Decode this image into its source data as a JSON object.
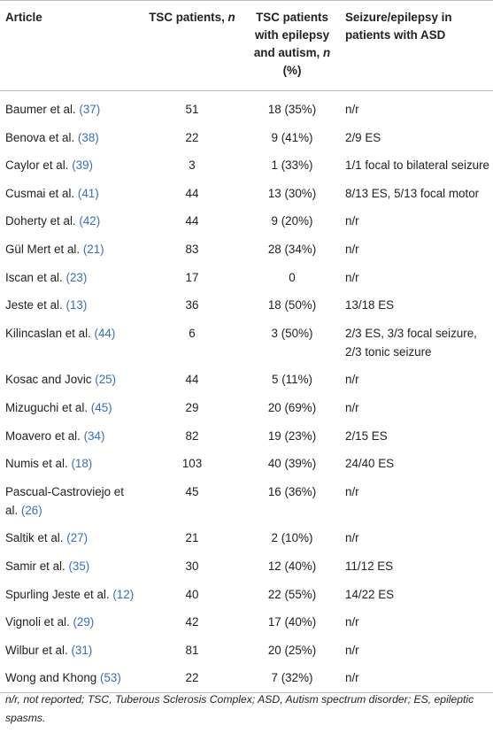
{
  "table": {
    "headers": {
      "article": "Article",
      "tsc_patients_label": "TSC patients,",
      "tsc_patients_n": "n",
      "epilepsy_autism_label": "TSC patients with epilepsy and autism,",
      "epilepsy_autism_n": "n",
      "epilepsy_autism_pct": "(%)",
      "seizure_asd": "Seizure/epilepsy in patients with ASD"
    },
    "rows": [
      {
        "article": "Baumer et al.",
        "ref": "(37)",
        "tsc": "51",
        "epi_aut": "18 (35%)",
        "seizure": "n/r"
      },
      {
        "article": "Benova et al.",
        "ref": "(38)",
        "tsc": "22",
        "epi_aut": "9 (41%)",
        "seizure": "2/9 ES"
      },
      {
        "article": "Caylor et al.",
        "ref": "(39)",
        "tsc": "3",
        "epi_aut": "1 (33%)",
        "seizure": "1/1 focal to bilateral seizure"
      },
      {
        "article": "Cusmai et al.",
        "ref": "(41)",
        "tsc": "44",
        "epi_aut": "13 (30%)",
        "seizure": "8/13 ES, 5/13 focal motor"
      },
      {
        "article": "Doherty et al.",
        "ref": "(42)",
        "tsc": "44",
        "epi_aut": "9 (20%)",
        "seizure": "n/r"
      },
      {
        "article": "Gül Mert et al.",
        "ref": "(21)",
        "tsc": "83",
        "epi_aut": "28 (34%)",
        "seizure": "n/r"
      },
      {
        "article": "Iscan et al.",
        "ref": "(23)",
        "tsc": "17",
        "epi_aut": "0",
        "seizure": "n/r"
      },
      {
        "article": "Jeste et al.",
        "ref": "(13)",
        "tsc": "36",
        "epi_aut": "18 (50%)",
        "seizure": "13/18 ES"
      },
      {
        "article": "Kilincaslan et al.",
        "ref": "(44)",
        "tsc": "6",
        "epi_aut": "3 (50%)",
        "seizure": "2/3 ES, 3/3 focal seizure, 2/3 tonic seizure"
      },
      {
        "article": "Kosac and Jovic",
        "ref": "(25)",
        "tsc": "44",
        "epi_aut": "5 (11%)",
        "seizure": "n/r"
      },
      {
        "article": "Mizuguchi et al.",
        "ref": "(45)",
        "tsc": "29",
        "epi_aut": "20 (69%)",
        "seizure": "n/r"
      },
      {
        "article": "Moavero et al.",
        "ref": "(34)",
        "tsc": "82",
        "epi_aut": "19 (23%)",
        "seizure": "2/15 ES"
      },
      {
        "article": "Numis et al.",
        "ref": "(18)",
        "tsc": "103",
        "epi_aut": "40 (39%)",
        "seizure": "24/40 ES"
      },
      {
        "article": "Pascual-Castroviejo et al.",
        "ref": "(26)",
        "tsc": "45",
        "epi_aut": "16 (36%)",
        "seizure": "n/r"
      },
      {
        "article": "Saltik et al.",
        "ref": "(27)",
        "tsc": "21",
        "epi_aut": "2 (10%)",
        "seizure": "n/r"
      },
      {
        "article": "Samir et al.",
        "ref": "(35)",
        "tsc": "30",
        "epi_aut": "12 (40%)",
        "seizure": "11/12 ES"
      },
      {
        "article": "Spurling Jeste et al.",
        "ref": "(12)",
        "tsc": "40",
        "epi_aut": "22 (55%)",
        "seizure": "14/22 ES"
      },
      {
        "article": "Vignoli et al.",
        "ref": "(29)",
        "tsc": "42",
        "epi_aut": "17 (40%)",
        "seizure": "n/r"
      },
      {
        "article": "Wilbur et al.",
        "ref": "(31)",
        "tsc": "81",
        "epi_aut": "20 (25%)",
        "seizure": "n/r"
      },
      {
        "article": "Wong and Khong",
        "ref": "(53)",
        "tsc": "22",
        "epi_aut": "7 (32%)",
        "seizure": "n/r"
      }
    ]
  },
  "footnote": "n/r, not reported; TSC, Tuberous Sclerosis Complex; ASD, Autism spectrum disorder; ES, epileptic spasms.",
  "colors": {
    "reference_link": "#3b6fb6",
    "rule": "#bdbdbd",
    "text": "#222222"
  }
}
